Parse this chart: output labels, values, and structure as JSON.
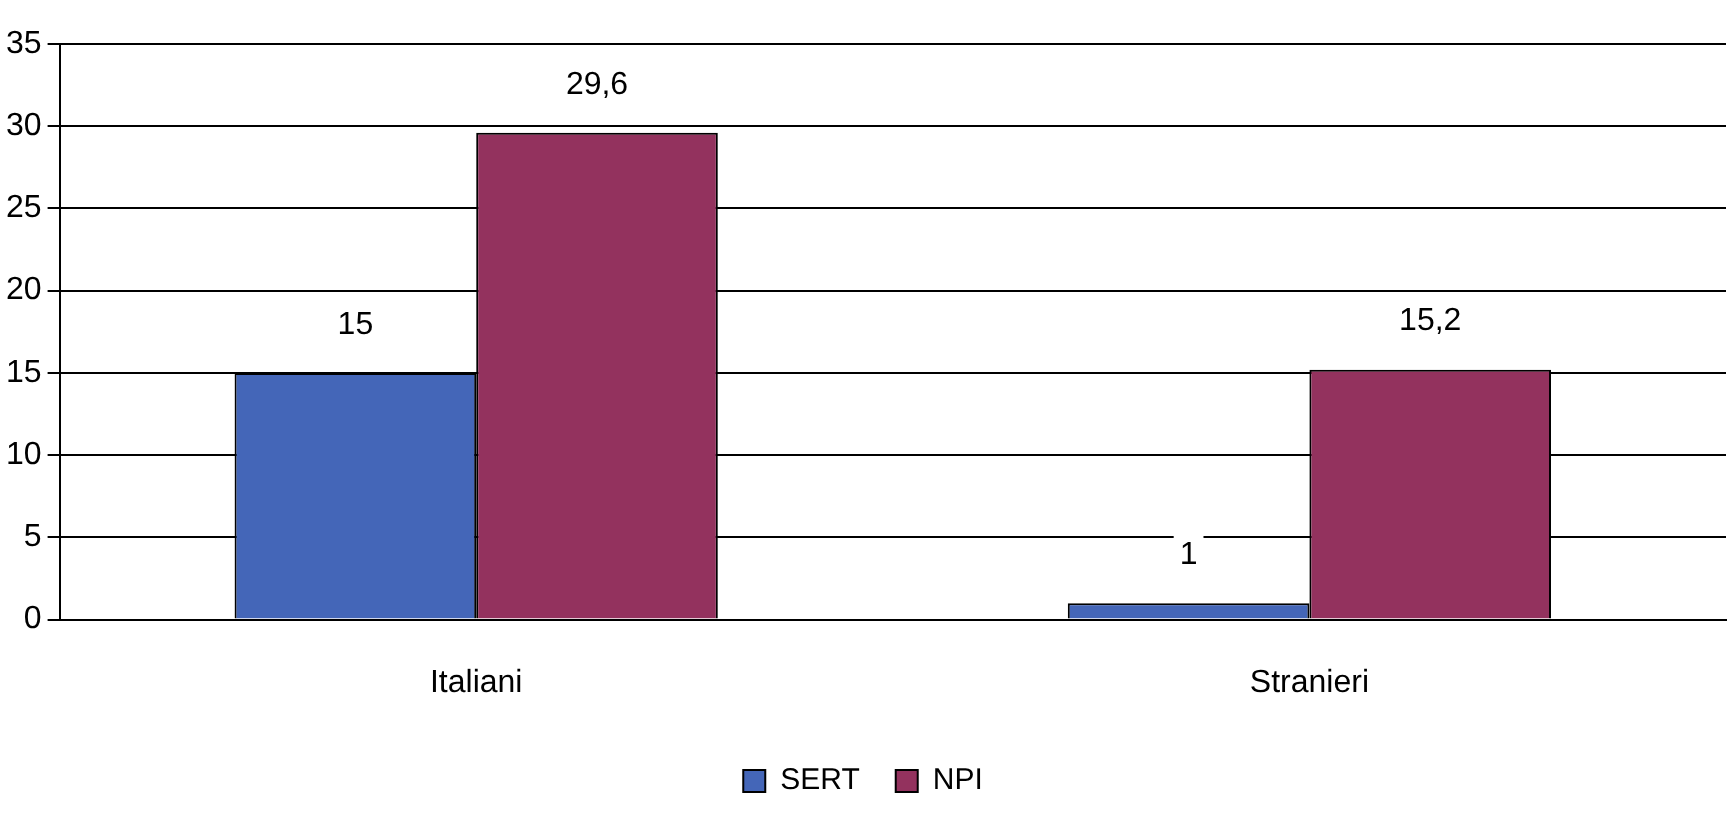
{
  "chart_data": {
    "type": "bar",
    "categories": [
      "Italiani",
      "Stranieri"
    ],
    "series": [
      {
        "name": "SERT",
        "color": "#4466b8",
        "values": [
          15,
          1
        ],
        "value_labels": [
          "15",
          "1"
        ]
      },
      {
        "name": "NPI",
        "color": "#93325e",
        "values": [
          29.6,
          15.2
        ],
        "value_labels": [
          "29,6",
          "15,2"
        ]
      }
    ],
    "ylim": [
      0,
      35
    ],
    "yticks": [
      0,
      5,
      10,
      15,
      20,
      25,
      30,
      35
    ],
    "grid": "y",
    "legend": "bottom"
  }
}
